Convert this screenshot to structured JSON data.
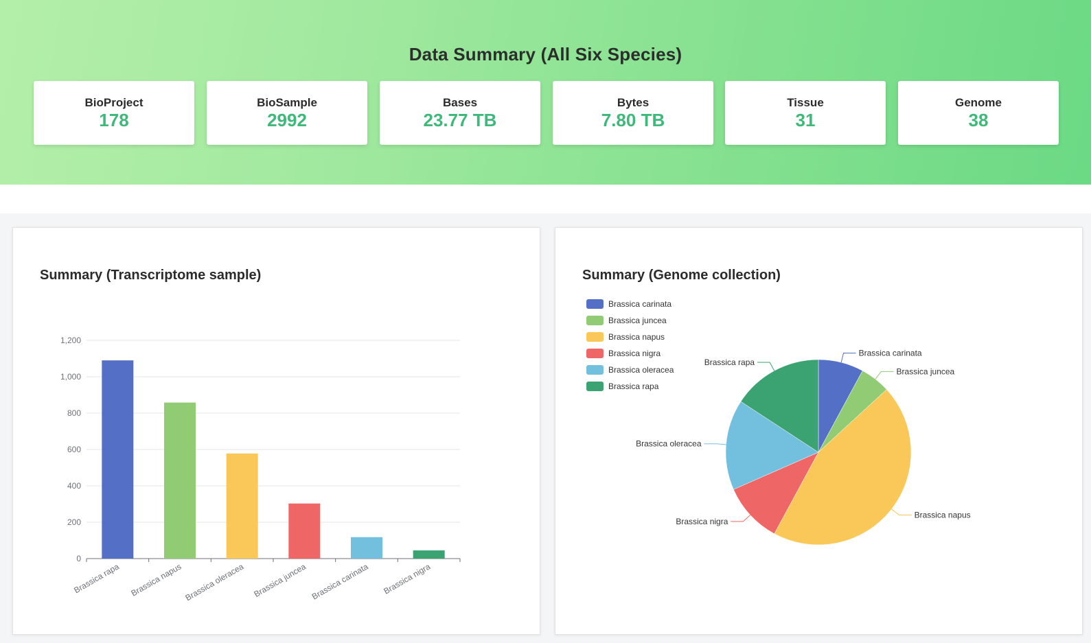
{
  "header": {
    "title": "Data Summary (All Six Species)",
    "stats": [
      {
        "label": "BioProject",
        "value": "178"
      },
      {
        "label": "BioSample",
        "value": "2992"
      },
      {
        "label": "Bases",
        "value": "23.77 TB"
      },
      {
        "label": "Bytes",
        "value": "7.80 TB"
      },
      {
        "label": "Tissue",
        "value": "31"
      },
      {
        "label": "Genome",
        "value": "38"
      }
    ]
  },
  "colors": {
    "value_green": "#3fb97a",
    "blue": "#5470c6",
    "green": "#91cc75",
    "yellow": "#fac858",
    "red": "#ee6666",
    "light_blue": "#73c0de",
    "dark_green": "#3ba272"
  },
  "chart_data": [
    {
      "type": "bar",
      "title": "Summary (Transcriptome sample)",
      "categories": [
        "Brassica rapa",
        "Brassica napus",
        "Brassica oleracea",
        "Brassica juncea",
        "Brassica carinata",
        "Brassica nigra"
      ],
      "values": [
        1090,
        858,
        578,
        303,
        118,
        45
      ],
      "bar_colors": [
        "#5470c6",
        "#91cc75",
        "#fac858",
        "#ee6666",
        "#73c0de",
        "#3ba272"
      ],
      "ylim": [
        0,
        1200
      ],
      "yticks": [
        0,
        200,
        400,
        600,
        800,
        1000,
        1200
      ],
      "ytick_labels": [
        "0",
        "200",
        "400",
        "600",
        "800",
        "1,000",
        "1,200"
      ],
      "xlabel": "",
      "ylabel": "",
      "grid": true
    },
    {
      "type": "pie",
      "title": "Summary (Genome collection)",
      "legend_position": "top-left",
      "labels": [
        "Brassica carinata",
        "Brassica juncea",
        "Brassica napus",
        "Brassica nigra",
        "Brassica oleracea",
        "Brassica rapa"
      ],
      "values": [
        3,
        2,
        17,
        4,
        6,
        6
      ],
      "colors": [
        "#5470c6",
        "#91cc75",
        "#fac858",
        "#ee6666",
        "#73c0de",
        "#3ba272"
      ]
    }
  ]
}
